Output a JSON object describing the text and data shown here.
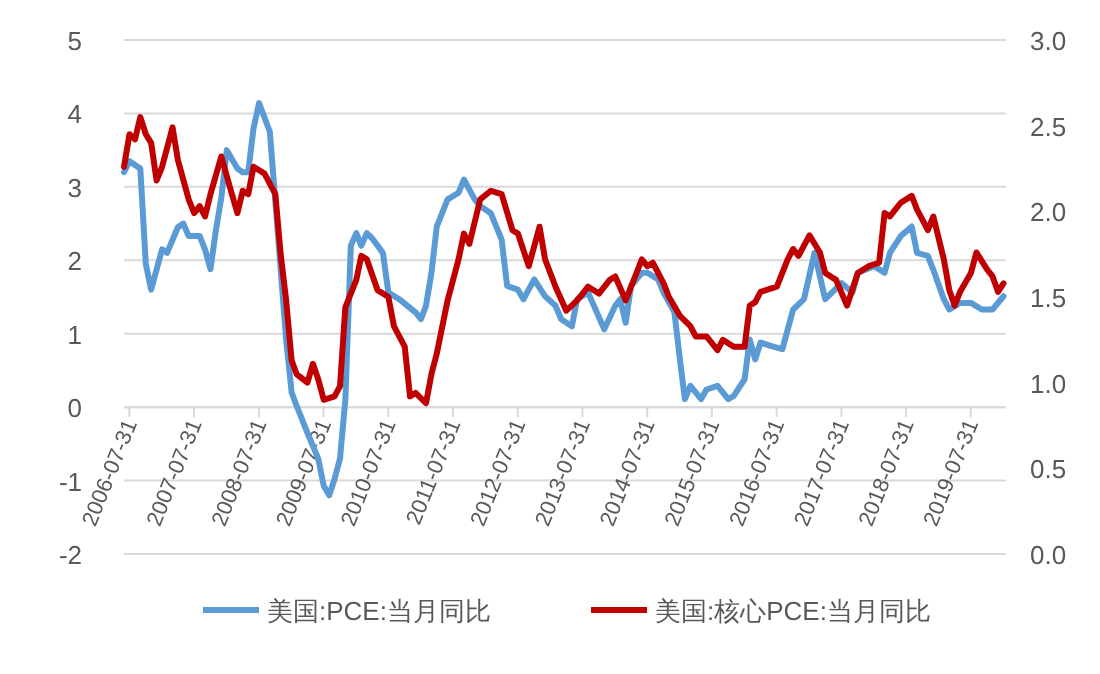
{
  "chart_data": {
    "type": "line",
    "xlim": [
      "2006-07-01",
      "2020-02-15"
    ],
    "xticks": [
      "2006-07-31",
      "2007-07-31",
      "2008-07-31",
      "2009-07-31",
      "2010-07-31",
      "2011-07-31",
      "2012-07-31",
      "2013-07-31",
      "2014-07-31",
      "2015-07-31",
      "2016-07-31",
      "2017-07-31",
      "2018-07-31",
      "2019-07-31"
    ],
    "ylim": [
      -2,
      5
    ],
    "yticks": [
      -2,
      -1,
      0,
      1,
      2,
      3,
      4,
      5
    ],
    "y2lim": [
      0,
      3
    ],
    "y2ticks": [
      {
        "value": 0,
        "label": "0.0"
      },
      {
        "value": 0.5,
        "label": "0.5"
      },
      {
        "value": 1,
        "label": "1.0"
      },
      {
        "value": 1.5,
        "label": "1.5"
      },
      {
        "value": 2,
        "label": "2.0"
      },
      {
        "value": 2.5,
        "label": "2.5"
      },
      {
        "value": 3,
        "label": "3.0"
      }
    ],
    "grid": "y",
    "legend": "bottom",
    "series": [
      {
        "name": "美国:PCE:当月同比",
        "color": "#5b9bd5",
        "x": [
          "2006-07",
          "2006-08",
          "2006-10",
          "2006-11",
          "2006-12",
          "2007-02",
          "2007-03",
          "2007-05",
          "2007-06",
          "2007-07",
          "2007-09",
          "2007-10",
          "2007-11",
          "2007-12",
          "2008-01",
          "2008-02",
          "2008-04",
          "2008-05",
          "2008-06",
          "2008-07",
          "2008-08",
          "2008-10",
          "2008-11",
          "2009-01",
          "2009-02",
          "2009-03",
          "2009-05",
          "2009-07",
          "2009-08",
          "2009-09",
          "2009-10",
          "2009-11",
          "2009-12",
          "2010-01",
          "2010-02",
          "2010-03",
          "2010-04",
          "2010-05",
          "2010-06",
          "2010-07",
          "2010-08",
          "2010-10",
          "2011-01",
          "2011-02",
          "2011-03",
          "2011-04",
          "2011-05",
          "2011-07",
          "2011-09",
          "2011-10",
          "2011-12",
          "2012-01",
          "2012-03",
          "2012-05",
          "2012-06",
          "2012-08",
          "2012-09",
          "2012-11",
          "2013-01",
          "2013-03",
          "2013-04",
          "2013-06",
          "2013-07",
          "2013-09",
          "2013-12",
          "2014-02",
          "2014-03",
          "2014-04",
          "2014-05",
          "2014-07",
          "2014-08",
          "2014-10",
          "2014-11",
          "2015-01",
          "2015-02",
          "2015-03",
          "2015-04",
          "2015-06",
          "2015-07",
          "2015-09",
          "2015-11",
          "2015-12",
          "2016-02",
          "2016-03",
          "2016-04",
          "2016-05",
          "2016-07",
          "2016-09",
          "2016-11",
          "2017-01",
          "2017-03",
          "2017-05",
          "2017-08",
          "2017-10",
          "2017-11",
          "2018-02",
          "2018-04",
          "2018-05",
          "2018-07",
          "2018-09",
          "2018-10",
          "2018-12",
          "2019-01",
          "2019-03",
          "2019-04",
          "2019-06",
          "2019-08",
          "2019-10",
          "2019-12",
          "2020-02"
        ],
        "values": [
          3.2,
          3.35,
          3.25,
          1.95,
          1.6,
          2.15,
          2.1,
          2.45,
          2.5,
          2.33,
          2.33,
          2.15,
          1.88,
          2.4,
          2.85,
          3.5,
          3.25,
          3.2,
          3.2,
          3.8,
          4.14,
          3.75,
          2.8,
          0.92,
          0.2,
          0.02,
          -0.35,
          -0.7,
          -1.07,
          -1.2,
          -0.98,
          -0.7,
          0.1,
          2.2,
          2.37,
          2.2,
          2.37,
          2.3,
          2.2,
          2.1,
          1.56,
          1.47,
          1.29,
          1.2,
          1.38,
          1.83,
          2.46,
          2.83,
          2.92,
          3.1,
          2.83,
          2.74,
          2.64,
          2.28,
          1.65,
          1.6,
          1.47,
          1.74,
          1.51,
          1.38,
          1.2,
          1.1,
          1.47,
          1.56,
          1.06,
          1.38,
          1.47,
          1.15,
          1.65,
          1.83,
          1.83,
          1.74,
          1.56,
          1.29,
          0.65,
          0.11,
          0.29,
          0.11,
          0.24,
          0.29,
          0.11,
          0.15,
          0.38,
          0.92,
          0.65,
          0.88,
          0.83,
          0.79,
          1.33,
          1.47,
          2.1,
          1.47,
          1.69,
          1.56,
          1.83,
          1.92,
          1.83,
          2.1,
          2.33,
          2.46,
          2.1,
          2.06,
          1.87,
          1.47,
          1.33,
          1.42,
          1.42,
          1.33,
          1.33,
          1.51
        ]
      },
      {
        "name": "美国:核心PCE:当月同比",
        "color": "#c00000",
        "axis": "y2",
        "x": [
          "2006-07",
          "2006-08",
          "2006-09",
          "2006-10",
          "2006-11",
          "2006-12",
          "2007-01",
          "2007-02",
          "2007-04",
          "2007-05",
          "2007-07",
          "2007-08",
          "2007-09",
          "2007-10",
          "2007-11",
          "2008-01",
          "2008-03",
          "2008-04",
          "2008-05",
          "2008-06",
          "2008-07",
          "2008-09",
          "2008-11",
          "2008-12",
          "2009-01",
          "2009-02",
          "2009-03",
          "2009-05",
          "2009-06",
          "2009-07",
          "2009-08",
          "2009-10",
          "2009-11",
          "2009-12",
          "2010-02",
          "2010-03",
          "2010-04",
          "2010-06",
          "2010-07",
          "2010-08",
          "2010-09",
          "2010-11",
          "2010-12",
          "2011-01",
          "2011-03",
          "2011-04",
          "2011-05",
          "2011-07",
          "2011-09",
          "2011-10",
          "2011-11",
          "2012-01",
          "2012-03",
          "2012-05",
          "2012-07",
          "2012-08",
          "2012-10",
          "2012-12",
          "2013-01",
          "2013-03",
          "2013-05",
          "2013-07",
          "2013-09",
          "2013-11",
          "2014-01",
          "2014-02",
          "2014-04",
          "2014-06",
          "2014-07",
          "2014-08",
          "2014-09",
          "2014-11",
          "2014-12",
          "2015-02",
          "2015-04",
          "2015-05",
          "2015-07",
          "2015-09",
          "2015-10",
          "2015-12",
          "2016-02",
          "2016-03",
          "2016-04",
          "2016-05",
          "2016-08",
          "2016-10",
          "2016-11",
          "2016-12",
          "2017-02",
          "2017-04",
          "2017-05",
          "2017-07",
          "2017-09",
          "2017-11",
          "2018-01",
          "2018-03",
          "2018-04",
          "2018-05",
          "2018-07",
          "2018-09",
          "2018-10",
          "2018-11",
          "2018-12",
          "2019-01",
          "2019-03",
          "2019-04",
          "2019-05",
          "2019-06",
          "2019-08",
          "2019-09",
          "2019-11",
          "2019-12",
          "2020-01",
          "2020-02"
        ],
        "values": [
          2.26,
          2.45,
          2.42,
          2.55,
          2.45,
          2.4,
          2.18,
          2.26,
          2.49,
          2.3,
          2.07,
          1.99,
          2.03,
          1.97,
          2.1,
          2.32,
          2.1,
          1.99,
          2.12,
          2.1,
          2.26,
          2.22,
          2.1,
          1.75,
          1.48,
          1.13,
          1.05,
          1.0,
          1.11,
          1.02,
          0.9,
          0.92,
          0.98,
          1.44,
          1.6,
          1.74,
          1.72,
          1.54,
          1.52,
          1.5,
          1.33,
          1.21,
          0.92,
          0.94,
          0.88,
          1.05,
          1.17,
          1.48,
          1.72,
          1.87,
          1.81,
          2.07,
          2.12,
          2.1,
          1.89,
          1.87,
          1.68,
          1.91,
          1.72,
          1.56,
          1.42,
          1.48,
          1.56,
          1.52,
          1.6,
          1.62,
          1.48,
          1.64,
          1.72,
          1.68,
          1.7,
          1.58,
          1.5,
          1.39,
          1.33,
          1.27,
          1.27,
          1.19,
          1.25,
          1.21,
          1.21,
          1.45,
          1.47,
          1.53,
          1.56,
          1.72,
          1.78,
          1.74,
          1.86,
          1.76,
          1.64,
          1.6,
          1.45,
          1.64,
          1.68,
          1.7,
          1.99,
          1.97,
          2.05,
          2.09,
          2.01,
          1.95,
          1.89,
          1.97,
          1.72,
          1.54,
          1.45,
          1.53,
          1.64,
          1.76,
          1.66,
          1.62,
          1.53,
          1.58
        ]
      }
    ]
  }
}
